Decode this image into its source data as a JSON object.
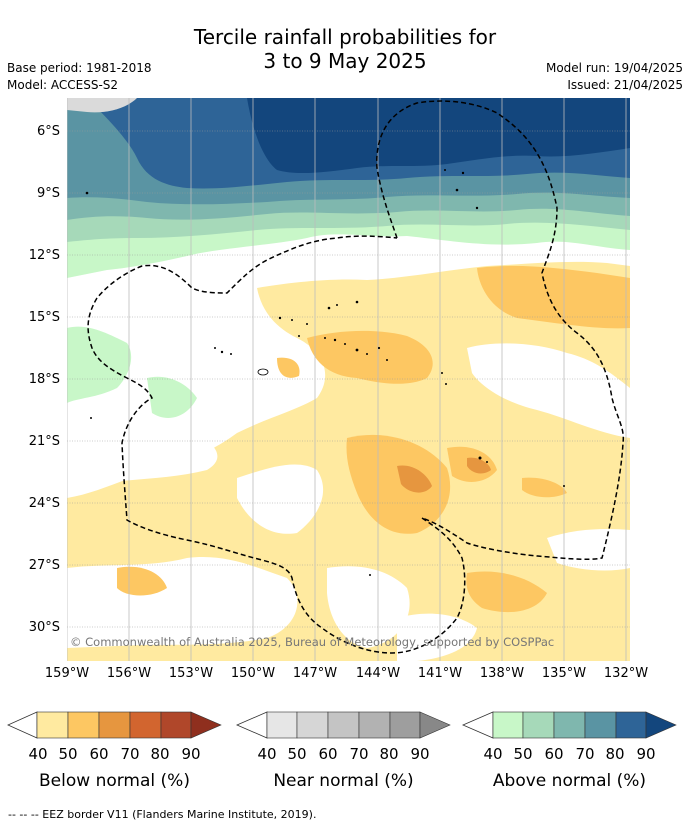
{
  "title_line1": "Tercile rainfall probabilities for",
  "title_line2": "3 to 9 May 2025",
  "meta": {
    "base_period": "Base period: 1981-2018",
    "model": "Model: ACCESS-S2",
    "model_run": "Model run: 19/04/2025",
    "issued": "Issued: 21/04/2025"
  },
  "map": {
    "lat_labels": [
      "6°S",
      "9°S",
      "12°S",
      "15°S",
      "18°S",
      "21°S",
      "24°S",
      "27°S",
      "30°S"
    ],
    "lon_labels": [
      "159°W",
      "156°W",
      "153°W",
      "150°W",
      "147°W",
      "144°W",
      "141°W",
      "138°W",
      "135°W",
      "132°W"
    ],
    "copyright": "© Commonwealth of Australia 2025, Bureau of Meteorology, supported by COSPPac",
    "ocean_color": "#ffffff",
    "grid_color": "#9a9a9a"
  },
  "colorbars": [
    {
      "label": "Below normal (%)",
      "ticks": [
        "40",
        "50",
        "60",
        "70",
        "80",
        "90"
      ],
      "colors": [
        "#ffeaa0",
        "#fdc762",
        "#e6963f",
        "#d2652f",
        "#b0472a",
        "#8f2f1e"
      ]
    },
    {
      "label": "Near normal (%)",
      "ticks": [
        "40",
        "50",
        "60",
        "70",
        "80",
        "90"
      ],
      "colors": [
        "#e6e6e6",
        "#d6d6d6",
        "#c4c4c4",
        "#b2b2b2",
        "#9e9e9e",
        "#888888"
      ]
    },
    {
      "label": "Above normal (%)",
      "ticks": [
        "40",
        "50",
        "60",
        "70",
        "80",
        "90"
      ],
      "colors": [
        "#c8f7c8",
        "#a6d9b9",
        "#7fb7ae",
        "#5a94a3",
        "#2e6497",
        "#13467d"
      ]
    }
  ],
  "footer": "--  --  -- EEZ border V11 (Flanders Marine Institute, 2019)."
}
